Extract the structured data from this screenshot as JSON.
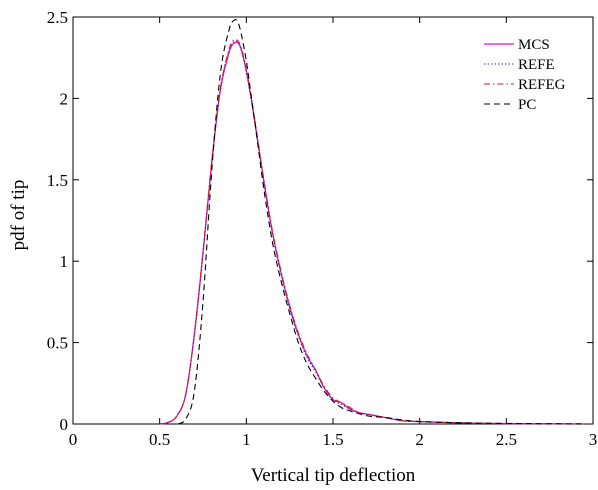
{
  "chart_data": {
    "type": "line",
    "title": "",
    "xlabel": "Vertical tip deflection",
    "ylabel": "pdf of tip",
    "xlim": [
      0,
      3
    ],
    "ylim": [
      0,
      2.5
    ],
    "xticks": [
      0,
      0.5,
      1,
      1.5,
      2,
      2.5,
      3
    ],
    "yticks": [
      0,
      0.5,
      1,
      1.5,
      2,
      2.5
    ],
    "xtick_labels": [
      "0",
      "0.5",
      "1",
      "1.5",
      "2",
      "2.5",
      "3"
    ],
    "ytick_labels": [
      "0",
      "0.5",
      "1",
      "1.5",
      "2",
      "2.5"
    ],
    "grid": false,
    "legend_position": "top-right",
    "series": [
      {
        "name": "MCS",
        "color": "#e60fd2",
        "style": "solid",
        "x": [
          0.5,
          0.55,
          0.6,
          0.65,
          0.7,
          0.75,
          0.8,
          0.85,
          0.9,
          0.93,
          0.96,
          0.99,
          1.02,
          1.05,
          1.1,
          1.15,
          1.2,
          1.25,
          1.3,
          1.35,
          1.4,
          1.45,
          1.5,
          1.55,
          1.6,
          1.65,
          1.7,
          1.8,
          1.9,
          2.0,
          2.2,
          2.4,
          2.6,
          2.8,
          2.95
        ],
        "y": [
          0.0,
          0.01,
          0.05,
          0.18,
          0.55,
          1.05,
          1.6,
          2.05,
          2.28,
          2.34,
          2.33,
          2.22,
          2.05,
          1.85,
          1.5,
          1.18,
          0.93,
          0.72,
          0.55,
          0.42,
          0.33,
          0.22,
          0.15,
          0.13,
          0.09,
          0.07,
          0.06,
          0.04,
          0.02,
          0.015,
          0.008,
          0.004,
          0.002,
          0.001,
          0.0
        ]
      },
      {
        "name": "REFE",
        "color": "#3a3ab8",
        "style": "dotted",
        "x": [
          0.5,
          0.55,
          0.6,
          0.65,
          0.7,
          0.75,
          0.8,
          0.85,
          0.9,
          0.93,
          0.96,
          0.99,
          1.02,
          1.05,
          1.1,
          1.15,
          1.2,
          1.25,
          1.3,
          1.35,
          1.4,
          1.45,
          1.5,
          1.55,
          1.6,
          1.65,
          1.7,
          1.8,
          1.9,
          2.0,
          2.2,
          2.4,
          2.6,
          2.8,
          2.95
        ],
        "y": [
          0.0,
          0.01,
          0.05,
          0.18,
          0.54,
          1.04,
          1.6,
          2.06,
          2.29,
          2.35,
          2.33,
          2.21,
          2.04,
          1.84,
          1.49,
          1.17,
          0.92,
          0.71,
          0.54,
          0.41,
          0.32,
          0.22,
          0.15,
          0.12,
          0.09,
          0.07,
          0.06,
          0.04,
          0.02,
          0.015,
          0.008,
          0.004,
          0.002,
          0.001,
          0.0
        ]
      },
      {
        "name": "REFEG",
        "color": "#d61a1a",
        "style": "dashdot",
        "x": [
          0.5,
          0.55,
          0.6,
          0.65,
          0.7,
          0.75,
          0.8,
          0.85,
          0.9,
          0.93,
          0.96,
          0.99,
          1.02,
          1.05,
          1.1,
          1.15,
          1.2,
          1.25,
          1.3,
          1.35,
          1.4,
          1.45,
          1.5,
          1.55,
          1.6,
          1.65,
          1.7,
          1.8,
          1.9,
          2.0,
          2.2,
          2.4,
          2.6,
          2.8,
          2.95
        ],
        "y": [
          0.0,
          0.01,
          0.05,
          0.18,
          0.55,
          1.06,
          1.61,
          2.06,
          2.3,
          2.36,
          2.34,
          2.23,
          2.06,
          1.86,
          1.51,
          1.19,
          0.94,
          0.73,
          0.56,
          0.43,
          0.33,
          0.23,
          0.16,
          0.13,
          0.1,
          0.07,
          0.06,
          0.04,
          0.02,
          0.015,
          0.008,
          0.004,
          0.002,
          0.001,
          0.0
        ]
      },
      {
        "name": "PC",
        "color": "#000000",
        "style": "dashed",
        "x": [
          0.55,
          0.6,
          0.65,
          0.7,
          0.75,
          0.8,
          0.85,
          0.9,
          0.93,
          0.95,
          0.97,
          1.0,
          1.03,
          1.06,
          1.1,
          1.15,
          1.2,
          1.25,
          1.3,
          1.35,
          1.4,
          1.45,
          1.5,
          1.55,
          1.6,
          1.7,
          1.8,
          1.9,
          2.0,
          2.2,
          2.4,
          2.6,
          2.8,
          2.95
        ],
        "y": [
          0.0,
          0.0,
          0.03,
          0.2,
          0.75,
          1.55,
          2.15,
          2.42,
          2.48,
          2.47,
          2.4,
          2.23,
          2.0,
          1.77,
          1.45,
          1.12,
          0.88,
          0.68,
          0.5,
          0.37,
          0.28,
          0.2,
          0.14,
          0.1,
          0.08,
          0.05,
          0.04,
          0.025,
          0.015,
          0.008,
          0.004,
          0.002,
          0.001,
          0.0
        ]
      }
    ]
  }
}
